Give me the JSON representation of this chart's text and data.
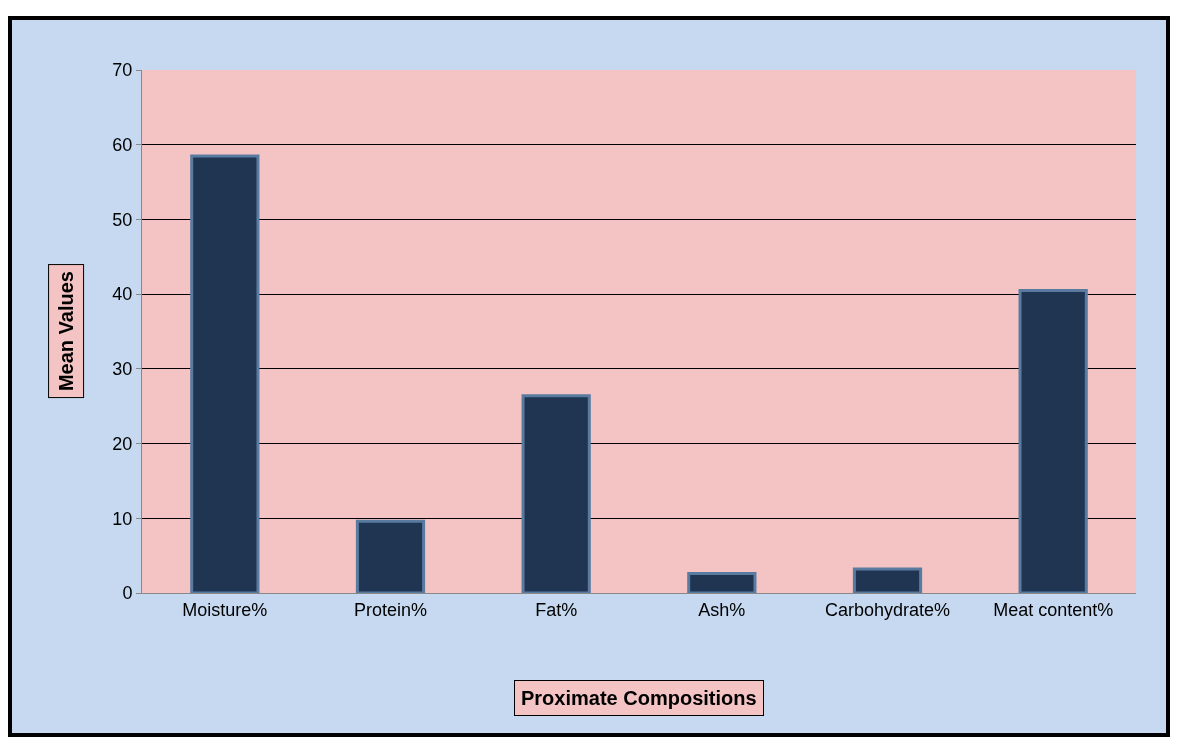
{
  "chart_data": {
    "type": "bar",
    "xlabel": "Proximate Compositions",
    "ylabel": "Mean Values",
    "categories": [
      "Moisture%",
      "Protein%",
      "Fat%",
      "Ash%",
      "Carbohydrate%",
      "Meat content%"
    ],
    "values": [
      58.5,
      9.6,
      26.4,
      2.6,
      3.2,
      40.5
    ],
    "color": "#1f3552",
    "ylim": [
      0,
      70
    ],
    "yticks": [
      0,
      10,
      20,
      30,
      40,
      50,
      60,
      70
    ],
    "grid": "y"
  }
}
